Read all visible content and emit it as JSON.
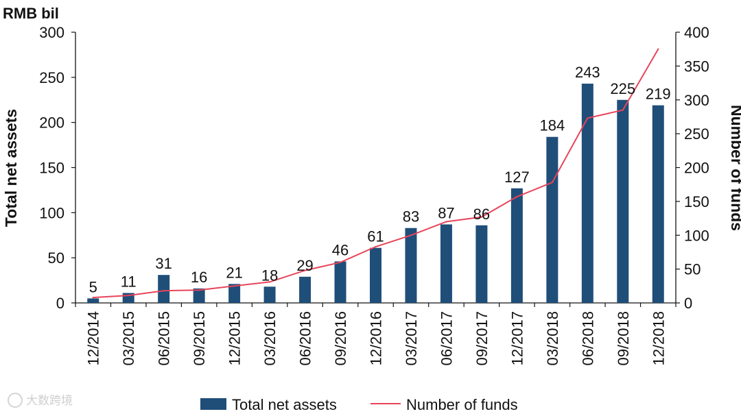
{
  "chart_data": {
    "type": "bar",
    "unit_label": "RMB bil",
    "categories": [
      "12/2014",
      "03/2015",
      "06/2015",
      "09/2015",
      "12/2015",
      "03/2016",
      "06/2016",
      "09/2016",
      "12/2016",
      "03/2017",
      "06/2017",
      "09/2017",
      "12/2017",
      "03/2018",
      "06/2018",
      "09/2018",
      "12/2018"
    ],
    "series": [
      {
        "name": "Total net assets",
        "kind": "bar",
        "axis": "left",
        "color": "#1f4e79",
        "values": [
          5,
          11,
          31,
          16,
          21,
          18,
          29,
          46,
          61,
          83,
          87,
          86,
          127,
          184,
          243,
          225,
          219
        ],
        "labels": [
          "5",
          "11",
          "31",
          "16",
          "21",
          "18",
          "29",
          "46",
          "61",
          "83",
          "87",
          "86",
          "127",
          "184",
          "243",
          "225",
          "219"
        ]
      },
      {
        "name": "Number of funds",
        "kind": "line",
        "axis": "right",
        "color": "#e8445a",
        "values": [
          8,
          11,
          18,
          19,
          25,
          31,
          48,
          60,
          83,
          100,
          120,
          127,
          157,
          178,
          273,
          285,
          375
        ]
      }
    ],
    "ylabel_left": "Total net assets",
    "ylabel_right": "Number of funds",
    "ylim_left": [
      0,
      300
    ],
    "ylim_right": [
      0,
      400
    ],
    "yticks_left": [
      "0",
      "50",
      "100",
      "150",
      "200",
      "250",
      "300"
    ],
    "yticks_right": [
      "0",
      "50",
      "100",
      "150",
      "200",
      "250",
      "300",
      "350",
      "400"
    ],
    "legend": [
      "Total net assets",
      "Number of funds"
    ],
    "legend_position": "bottom"
  },
  "watermark": "大数跨境"
}
